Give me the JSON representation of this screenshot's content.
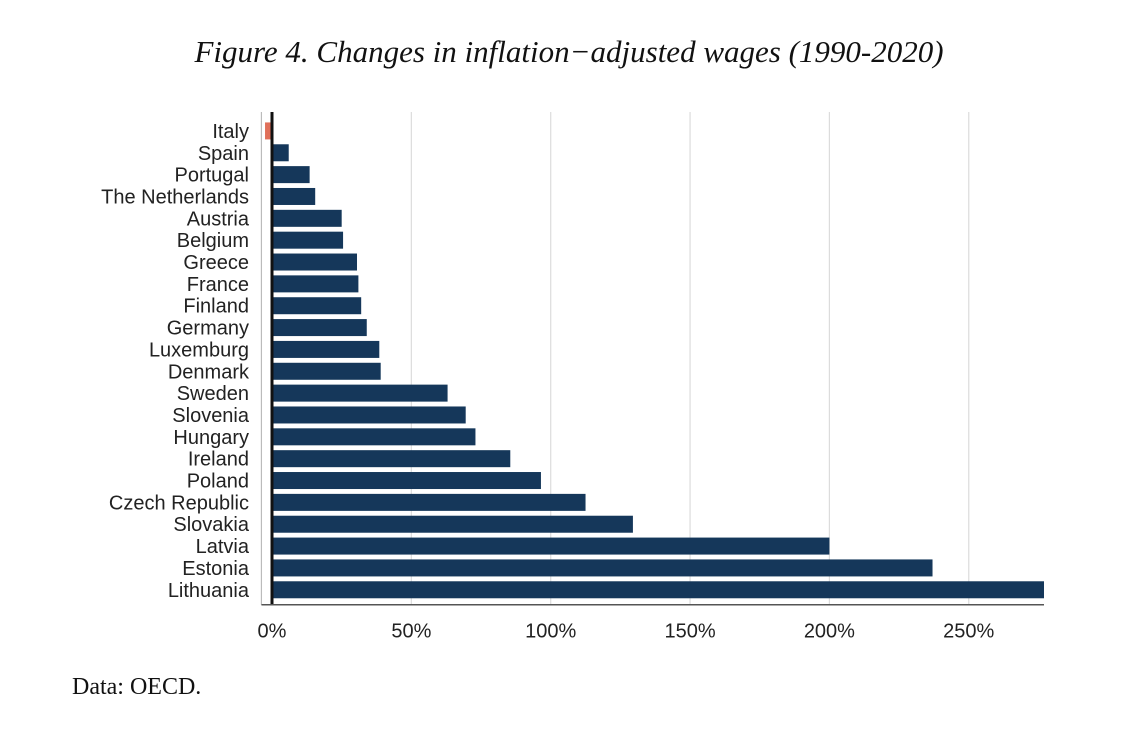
{
  "figure": {
    "title": "Figure 4. Changes in inflation−adjusted wages (1990-2020)",
    "source": "Data: OECD."
  },
  "colors": {
    "bar": "#15375a",
    "negative_bar": "#e0705a",
    "grid": "#dcdcdc",
    "axis": "#111111",
    "text": "#222222"
  },
  "chart_data": {
    "type": "bar",
    "orientation": "horizontal",
    "title": "Figure 4. Changes in inflation−adjusted wages (1990-2020)",
    "xlabel": "",
    "ylabel": "",
    "unit": "%",
    "xlim": [
      -2,
      277
    ],
    "xticks": [
      0,
      50,
      100,
      150,
      200,
      250
    ],
    "xtick_labels": [
      "0%",
      "50%",
      "100%",
      "150%",
      "200%",
      "250%"
    ],
    "grid": "vertical",
    "legend": "none",
    "categories": [
      "Italy",
      "Spain",
      "Portugal",
      "The Netherlands",
      "Austria",
      "Belgium",
      "Greece",
      "France",
      "Finland",
      "Germany",
      "Luxemburg",
      "Denmark",
      "Sweden",
      "Slovenia",
      "Hungary",
      "Ireland",
      "Poland",
      "Czech Republic",
      "Slovakia",
      "Latvia",
      "Estonia",
      "Lithuania"
    ],
    "values": [
      -2.5,
      6,
      13.5,
      15.5,
      25,
      25.5,
      30.5,
      31,
      32,
      34,
      38.5,
      39,
      63,
      69.5,
      73,
      85.5,
      96.5,
      112.5,
      129.5,
      200,
      237,
      277
    ]
  }
}
